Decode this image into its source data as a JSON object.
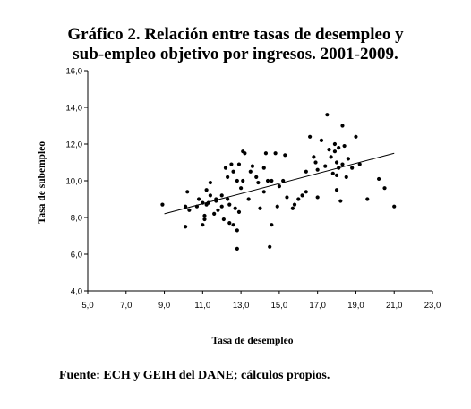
{
  "title_line1": "Gráfico 2. Relación entre tasas de desempleo y",
  "title_line2": "sub-empleo objetivo por ingresos. 2001-2009.",
  "source": "Fuente: ECH y GEIH del DANE; cálculos propios.",
  "chart_data": {
    "type": "scatter",
    "title": "Gráfico 2. Relación entre tasas de desempleo y sub-empleo objetivo por ingresos. 2001-2009.",
    "xlabel": "Tasa de desempleo",
    "ylabel": "Tasa de subempleo",
    "xlim": [
      5.0,
      23.0
    ],
    "ylim": [
      4.0,
      16.0
    ],
    "xticks": [
      "5,0",
      "7,0",
      "9,0",
      "11,0",
      "13,0",
      "15,0",
      "17,0",
      "19,0",
      "21,0",
      "23,0"
    ],
    "xtick_values": [
      5,
      7,
      9,
      11,
      13,
      15,
      17,
      19,
      21,
      23
    ],
    "yticks": [
      "4,0",
      "6,0",
      "8,0",
      "10,0",
      "12,0",
      "14,0",
      "16,0"
    ],
    "ytick_values": [
      4,
      6,
      8,
      10,
      12,
      14,
      16
    ],
    "grid": false,
    "legend": "none",
    "marker_color": "#000000",
    "trendline": {
      "x": [
        9.0,
        21.0
      ],
      "y": [
        8.2,
        11.5
      ],
      "color": "#000000"
    },
    "points": [
      [
        8.9,
        8.7
      ],
      [
        10.1,
        7.5
      ],
      [
        10.1,
        8.6
      ],
      [
        10.2,
        9.4
      ],
      [
        10.3,
        8.4
      ],
      [
        10.7,
        8.6
      ],
      [
        10.8,
        9.0
      ],
      [
        11.0,
        8.8
      ],
      [
        11.0,
        7.6
      ],
      [
        11.1,
        7.9
      ],
      [
        11.1,
        8.1
      ],
      [
        11.2,
        8.7
      ],
      [
        11.2,
        9.5
      ],
      [
        11.3,
        8.8
      ],
      [
        11.4,
        9.2
      ],
      [
        11.4,
        9.9
      ],
      [
        11.6,
        8.2
      ],
      [
        11.7,
        9.0
      ],
      [
        11.7,
        8.9
      ],
      [
        11.8,
        8.4
      ],
      [
        12.0,
        9.2
      ],
      [
        12.0,
        8.6
      ],
      [
        12.1,
        7.9
      ],
      [
        12.2,
        10.7
      ],
      [
        12.3,
        9.0
      ],
      [
        12.3,
        10.2
      ],
      [
        12.4,
        8.7
      ],
      [
        12.4,
        7.7
      ],
      [
        12.5,
        10.9
      ],
      [
        12.6,
        7.6
      ],
      [
        12.6,
        10.5
      ],
      [
        12.7,
        8.5
      ],
      [
        12.8,
        6.3
      ],
      [
        12.8,
        10.0
      ],
      [
        12.8,
        7.3
      ],
      [
        12.9,
        10.9
      ],
      [
        12.9,
        8.3
      ],
      [
        13.0,
        9.6
      ],
      [
        13.1,
        11.6
      ],
      [
        13.1,
        10.0
      ],
      [
        13.2,
        11.5
      ],
      [
        13.4,
        9.0
      ],
      [
        13.5,
        10.5
      ],
      [
        13.6,
        10.8
      ],
      [
        13.8,
        10.2
      ],
      [
        13.9,
        9.9
      ],
      [
        14.0,
        8.5
      ],
      [
        14.2,
        10.7
      ],
      [
        14.2,
        9.4
      ],
      [
        14.3,
        11.5
      ],
      [
        14.4,
        10.0
      ],
      [
        14.5,
        6.4
      ],
      [
        14.6,
        10.0
      ],
      [
        14.6,
        7.6
      ],
      [
        14.8,
        11.5
      ],
      [
        14.9,
        8.6
      ],
      [
        15.0,
        9.7
      ],
      [
        15.2,
        10.0
      ],
      [
        15.3,
        11.4
      ],
      [
        15.4,
        9.1
      ],
      [
        15.7,
        8.5
      ],
      [
        15.8,
        8.7
      ],
      [
        16.0,
        9.0
      ],
      [
        16.2,
        9.2
      ],
      [
        16.4,
        9.4
      ],
      [
        16.4,
        10.5
      ],
      [
        16.6,
        12.4
      ],
      [
        16.8,
        11.3
      ],
      [
        16.9,
        11.0
      ],
      [
        17.0,
        9.1
      ],
      [
        17.0,
        10.6
      ],
      [
        17.2,
        12.2
      ],
      [
        17.4,
        10.8
      ],
      [
        17.5,
        13.6
      ],
      [
        17.6,
        11.7
      ],
      [
        17.7,
        11.3
      ],
      [
        17.8,
        10.4
      ],
      [
        17.9,
        11.6
      ],
      [
        17.9,
        12.0
      ],
      [
        18.0,
        10.3
      ],
      [
        18.0,
        11.0
      ],
      [
        18.0,
        9.5
      ],
      [
        18.1,
        10.7
      ],
      [
        18.1,
        11.8
      ],
      [
        18.2,
        8.9
      ],
      [
        18.3,
        13.0
      ],
      [
        18.3,
        10.9
      ],
      [
        18.4,
        11.9
      ],
      [
        18.5,
        10.2
      ],
      [
        18.6,
        11.2
      ],
      [
        18.8,
        10.7
      ],
      [
        19.0,
        12.4
      ],
      [
        19.2,
        10.9
      ],
      [
        19.6,
        9.0
      ],
      [
        20.2,
        10.1
      ],
      [
        20.5,
        9.6
      ],
      [
        21.0,
        8.6
      ]
    ]
  }
}
